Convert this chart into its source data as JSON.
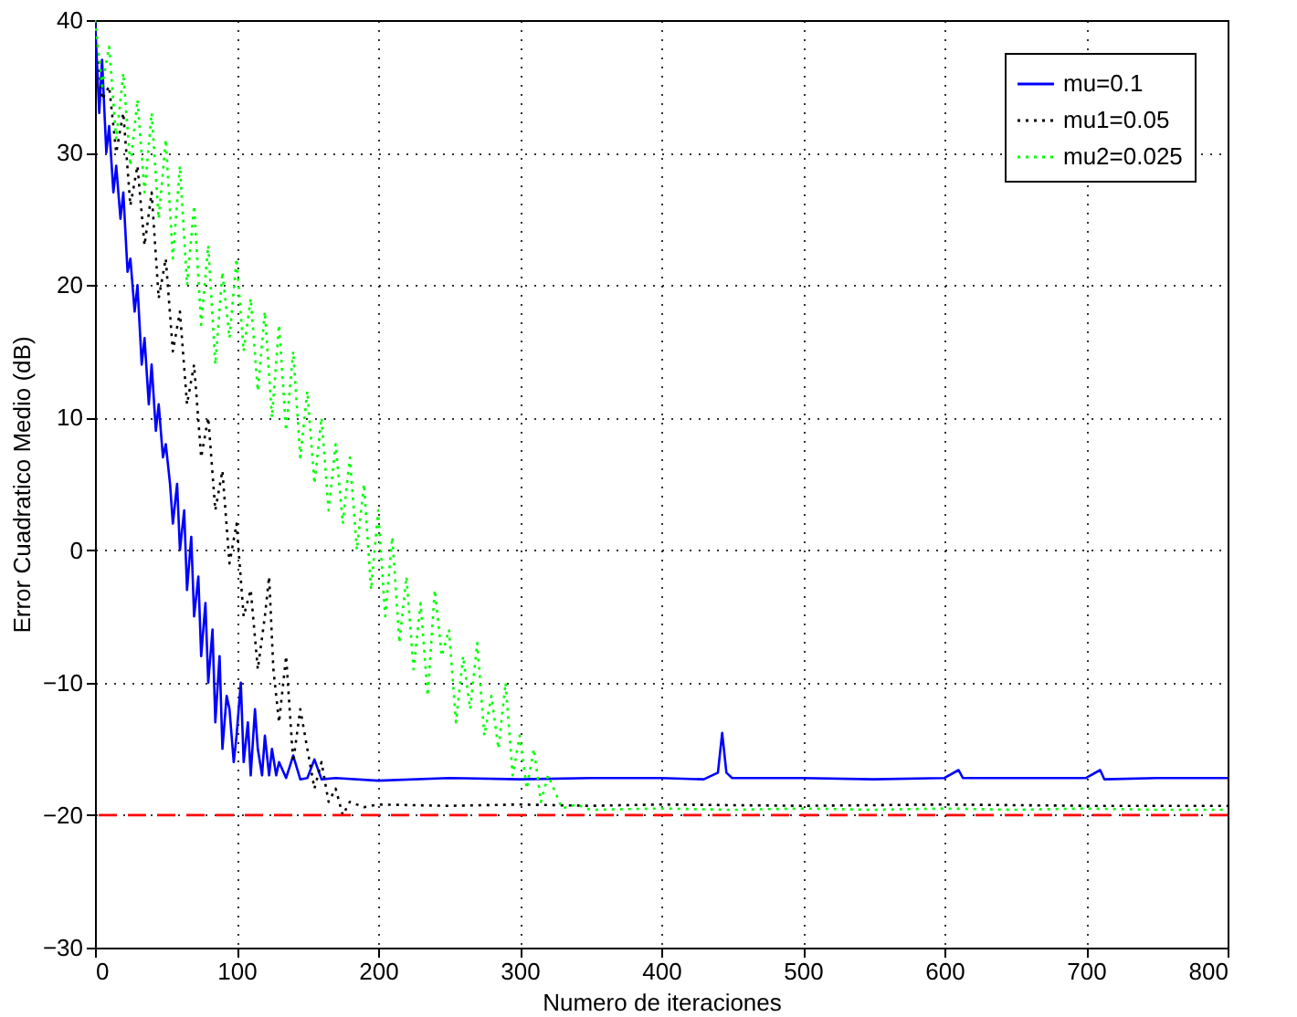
{
  "chart_data": {
    "type": "line",
    "xlabel": "Numero de iteraciones",
    "ylabel": "Error Cuadratico Medio (dB)",
    "xlim": [
      0,
      800
    ],
    "ylim": [
      -30,
      40
    ],
    "xticks": [
      0,
      100,
      200,
      300,
      400,
      500,
      600,
      700,
      800
    ],
    "yticks": [
      -30,
      -20,
      -10,
      0,
      10,
      20,
      30,
      40
    ],
    "grid": true,
    "legend": "top right",
    "marker": "none",
    "ref_lines": [
      {
        "axis": "y",
        "value": -20,
        "color": "#ff0000",
        "line_style": "dashed"
      }
    ],
    "series": [
      {
        "name": "mu=0.1",
        "color": "#0000ff",
        "line_style": "solid",
        "x": [
          0,
          3,
          5,
          8,
          10,
          13,
          15,
          18,
          20,
          23,
          25,
          28,
          30,
          33,
          35,
          38,
          40,
          43,
          45,
          48,
          50,
          53,
          55,
          58,
          60,
          63,
          65,
          68,
          70,
          73,
          75,
          78,
          80,
          83,
          85,
          88,
          90,
          93,
          95,
          98,
          100,
          103,
          105,
          108,
          110,
          113,
          115,
          118,
          120,
          123,
          125,
          128,
          130,
          135,
          140,
          145,
          150,
          155,
          160,
          170,
          200,
          250,
          300,
          350,
          400,
          430,
          440,
          443,
          446,
          450,
          500,
          550,
          600,
          610,
          613,
          650,
          700,
          710,
          713,
          750,
          800
        ],
        "values": [
          40,
          33,
          37,
          30,
          32,
          27,
          29,
          25,
          27,
          21,
          22,
          18,
          20,
          14,
          16,
          11,
          14,
          9,
          11,
          7,
          8,
          5,
          2,
          5,
          0,
          3,
          -3,
          1,
          -5,
          -2,
          -8,
          -4,
          -10,
          -6,
          -13,
          -8,
          -15,
          -11,
          -12,
          -16,
          -14,
          -10,
          -16,
          -13,
          -17,
          -12,
          -15,
          -17,
          -14,
          -17,
          -15,
          -17,
          -16,
          -17.2,
          -15.5,
          -17.3,
          -17.2,
          -15.8,
          -17.3,
          -17.2,
          -17.4,
          -17.2,
          -17.3,
          -17.2,
          -17.2,
          -17.3,
          -16.8,
          -13.8,
          -16.8,
          -17.2,
          -17.2,
          -17.3,
          -17.2,
          -16.6,
          -17.2,
          -17.2,
          -17.2,
          -16.6,
          -17.3,
          -17.2,
          -17.2
        ]
      },
      {
        "name": "mu1=0.05",
        "color": "#000000",
        "line_style": "dotted",
        "x": [
          0,
          5,
          10,
          15,
          20,
          25,
          30,
          35,
          40,
          45,
          50,
          55,
          60,
          65,
          70,
          75,
          80,
          85,
          90,
          95,
          100,
          105,
          110,
          115,
          120,
          123,
          126,
          130,
          135,
          140,
          145,
          150,
          155,
          160,
          165,
          170,
          175,
          180,
          190,
          200,
          250,
          300,
          350,
          400,
          500,
          600,
          700,
          800
        ],
        "values": [
          40,
          34,
          35,
          30,
          33,
          26,
          29,
          23,
          27,
          19,
          22,
          15,
          18,
          11,
          14,
          7,
          10,
          3,
          6,
          -1,
          2,
          -5,
          -3,
          -9,
          -5,
          -2,
          -9,
          -13,
          -8,
          -16,
          -12,
          -15,
          -18,
          -16,
          -19,
          -18,
          -20,
          -19,
          -19.4,
          -19.2,
          -19.3,
          -19.2,
          -19.3,
          -19.2,
          -19.3,
          -19.2,
          -19.3,
          -19.3
        ]
      },
      {
        "name": "mu2=0.025",
        "color": "#00ff00",
        "line_style": "dotted",
        "x": [
          0,
          5,
          10,
          15,
          20,
          25,
          30,
          35,
          40,
          45,
          50,
          55,
          60,
          65,
          70,
          75,
          80,
          85,
          90,
          95,
          100,
          105,
          110,
          115,
          120,
          125,
          130,
          135,
          140,
          145,
          150,
          155,
          160,
          165,
          170,
          175,
          180,
          185,
          190,
          195,
          200,
          205,
          210,
          215,
          220,
          225,
          230,
          235,
          240,
          245,
          250,
          255,
          260,
          265,
          270,
          275,
          280,
          285,
          290,
          295,
          300,
          305,
          310,
          315,
          320,
          330,
          340,
          350,
          400,
          450,
          500,
          550,
          600,
          650,
          700,
          750,
          800
        ],
        "values": [
          40,
          35,
          38,
          31,
          36,
          29,
          34,
          27,
          33,
          25,
          31,
          22,
          29,
          20,
          26,
          17,
          23,
          14,
          21,
          16,
          22,
          15,
          19,
          12,
          18,
          10,
          17,
          9,
          15,
          7,
          12,
          5,
          10,
          3,
          8,
          2,
          7,
          0,
          5,
          -3,
          3,
          -5,
          1,
          -7,
          -2,
          -9,
          -4,
          -11,
          -3,
          -8,
          -6,
          -13,
          -8,
          -12,
          -7,
          -14,
          -11,
          -15,
          -10,
          -17,
          -14,
          -18,
          -15,
          -19,
          -17,
          -19.5,
          -19.2,
          -19.6,
          -19.5,
          -19.6,
          -19.5,
          -19.6,
          -19.5,
          -19.6,
          -19.5,
          -19.6,
          -19.6
        ]
      }
    ]
  }
}
